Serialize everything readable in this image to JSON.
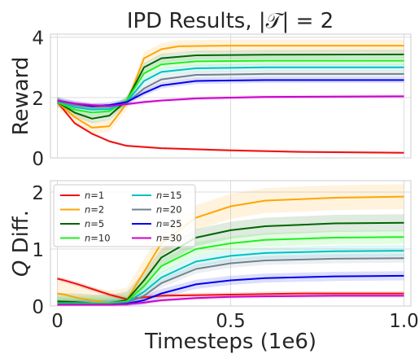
{
  "title": "IPD Results, |𝒯| = 2",
  "chart_data": [
    {
      "type": "line",
      "name": "reward-panel",
      "ylabel": "Reward",
      "xlabel": "",
      "xlim": [
        -0.02,
        1.02
      ],
      "ylim": [
        0,
        4.1
      ],
      "yticks": [
        0,
        2,
        4
      ],
      "yticklabels": [
        "0",
        "2",
        "4"
      ],
      "grid": true,
      "series": [
        {
          "name": "n=1",
          "color": "#ee1111",
          "x": [
            0,
            0.05,
            0.1,
            0.15,
            0.2,
            0.3,
            0.5,
            0.7,
            0.9,
            1.0
          ],
          "y": [
            1.85,
            1.15,
            0.8,
            0.55,
            0.4,
            0.32,
            0.25,
            0.2,
            0.18,
            0.17
          ],
          "band": 0.04
        },
        {
          "name": "n=2",
          "color": "#ffa500",
          "x": [
            0,
            0.05,
            0.1,
            0.15,
            0.2,
            0.25,
            0.3,
            0.35,
            0.5,
            1.0
          ],
          "y": [
            1.85,
            1.35,
            1.0,
            1.05,
            1.8,
            3.3,
            3.6,
            3.7,
            3.72,
            3.72
          ],
          "band": 0.2
        },
        {
          "name": "n=5",
          "color": "#006400",
          "x": [
            0,
            0.05,
            0.1,
            0.15,
            0.2,
            0.25,
            0.3,
            0.4,
            0.6,
            1.0
          ],
          "y": [
            1.85,
            1.5,
            1.3,
            1.4,
            1.9,
            3.0,
            3.3,
            3.4,
            3.42,
            3.43
          ],
          "band": 0.15
        },
        {
          "name": "n=10",
          "color": "#22ee22",
          "x": [
            0,
            0.05,
            0.1,
            0.15,
            0.2,
            0.25,
            0.3,
            0.4,
            0.6,
            1.0
          ],
          "y": [
            1.85,
            1.6,
            1.5,
            1.55,
            1.9,
            2.8,
            3.1,
            3.2,
            3.22,
            3.22
          ],
          "band": 0.15
        },
        {
          "name": "n=15",
          "color": "#00c0c0",
          "x": [
            0,
            0.05,
            0.1,
            0.15,
            0.2,
            0.25,
            0.3,
            0.4,
            0.6,
            1.0
          ],
          "y": [
            1.88,
            1.68,
            1.6,
            1.62,
            1.85,
            2.55,
            2.85,
            2.97,
            3.0,
            3.0
          ],
          "band": 0.12
        },
        {
          "name": "n=20",
          "color": "#708090",
          "x": [
            0,
            0.05,
            0.1,
            0.15,
            0.2,
            0.25,
            0.3,
            0.4,
            0.6,
            1.0
          ],
          "y": [
            1.9,
            1.75,
            1.68,
            1.7,
            1.82,
            2.3,
            2.6,
            2.75,
            2.78,
            2.78
          ],
          "band": 0.12
        },
        {
          "name": "n=25",
          "color": "#0000ee",
          "x": [
            0,
            0.05,
            0.1,
            0.15,
            0.2,
            0.25,
            0.3,
            0.4,
            0.6,
            1.0
          ],
          "y": [
            1.9,
            1.8,
            1.72,
            1.75,
            1.85,
            2.15,
            2.4,
            2.55,
            2.58,
            2.58
          ],
          "band": 0.1
        },
        {
          "name": "n=30",
          "color": "#cc00cc",
          "x": [
            0,
            0.05,
            0.1,
            0.15,
            0.2,
            0.25,
            0.3,
            0.4,
            0.6,
            1.0
          ],
          "y": [
            1.9,
            1.8,
            1.75,
            1.72,
            1.78,
            1.85,
            1.9,
            1.97,
            2.02,
            2.04
          ],
          "band": 0.06
        }
      ]
    },
    {
      "type": "line",
      "name": "qdiff-panel",
      "ylabel": "Q Diff.",
      "xlabel": "Timesteps (1e6)",
      "xlim": [
        -0.02,
        1.02
      ],
      "ylim": [
        0,
        2.2
      ],
      "yticks": [
        0,
        1,
        2
      ],
      "yticklabels": [
        "0",
        "1",
        "2"
      ],
      "xticks": [
        0,
        0.5,
        1.0
      ],
      "xticklabels": [
        "0",
        "0.5",
        "1.0"
      ],
      "grid": true,
      "legend": {
        "placement": "top-left",
        "columns": 2
      },
      "series": [
        {
          "name": "n=1",
          "color": "#ee1111",
          "x": [
            0,
            0.02,
            0.06,
            0.1,
            0.15,
            0.2,
            0.25,
            0.3,
            0.5,
            0.7,
            1.0
          ],
          "y": [
            0.48,
            0.45,
            0.38,
            0.3,
            0.2,
            0.12,
            0.15,
            0.18,
            0.2,
            0.22,
            0.22
          ],
          "band": 0.04
        },
        {
          "name": "n=2",
          "color": "#ffa500",
          "x": [
            0,
            0.02,
            0.06,
            0.1,
            0.15,
            0.2,
            0.25,
            0.3,
            0.4,
            0.5,
            0.6,
            0.8,
            1.0
          ],
          "y": [
            0.22,
            0.2,
            0.14,
            0.1,
            0.05,
            0.1,
            0.6,
            1.1,
            1.55,
            1.75,
            1.85,
            1.9,
            1.92
          ],
          "band": 0.22
        },
        {
          "name": "n=5",
          "color": "#006400",
          "x": [
            0,
            0.05,
            0.1,
            0.15,
            0.2,
            0.25,
            0.3,
            0.4,
            0.5,
            0.6,
            0.8,
            1.0
          ],
          "y": [
            0.08,
            0.07,
            0.05,
            0.05,
            0.1,
            0.45,
            0.85,
            1.2,
            1.33,
            1.4,
            1.45,
            1.46
          ],
          "band": 0.15
        },
        {
          "name": "n=10",
          "color": "#22ee22",
          "x": [
            0,
            0.05,
            0.1,
            0.15,
            0.2,
            0.25,
            0.3,
            0.4,
            0.5,
            0.6,
            0.8,
            1.0
          ],
          "y": [
            0.05,
            0.05,
            0.05,
            0.05,
            0.08,
            0.35,
            0.7,
            1.0,
            1.1,
            1.16,
            1.2,
            1.21
          ],
          "band": 0.12
        },
        {
          "name": "n=15",
          "color": "#00c0c0",
          "x": [
            0,
            0.05,
            0.1,
            0.15,
            0.2,
            0.25,
            0.3,
            0.4,
            0.5,
            0.6,
            0.8,
            1.0
          ],
          "y": [
            0.04,
            0.04,
            0.04,
            0.04,
            0.06,
            0.25,
            0.5,
            0.78,
            0.88,
            0.93,
            0.96,
            0.97
          ],
          "band": 0.1
        },
        {
          "name": "n=20",
          "color": "#708090",
          "x": [
            0,
            0.05,
            0.1,
            0.15,
            0.2,
            0.25,
            0.3,
            0.4,
            0.5,
            0.6,
            0.8,
            1.0
          ],
          "y": [
            0.03,
            0.03,
            0.03,
            0.03,
            0.05,
            0.18,
            0.4,
            0.65,
            0.75,
            0.8,
            0.83,
            0.84
          ],
          "band": 0.08
        },
        {
          "name": "n=25",
          "color": "#0000ee",
          "x": [
            0,
            0.05,
            0.1,
            0.15,
            0.2,
            0.25,
            0.3,
            0.4,
            0.5,
            0.6,
            0.8,
            1.0
          ],
          "y": [
            0.02,
            0.02,
            0.02,
            0.02,
            0.04,
            0.1,
            0.22,
            0.38,
            0.45,
            0.49,
            0.52,
            0.53
          ],
          "band": 0.08
        },
        {
          "name": "n=30",
          "color": "#cc00cc",
          "x": [
            0,
            0.05,
            0.1,
            0.15,
            0.2,
            0.25,
            0.3,
            0.4,
            0.5,
            0.6,
            0.8,
            1.0
          ],
          "y": [
            0.02,
            0.02,
            0.02,
            0.02,
            0.03,
            0.06,
            0.1,
            0.14,
            0.16,
            0.17,
            0.18,
            0.18
          ],
          "band": 0.03
        }
      ]
    }
  ]
}
